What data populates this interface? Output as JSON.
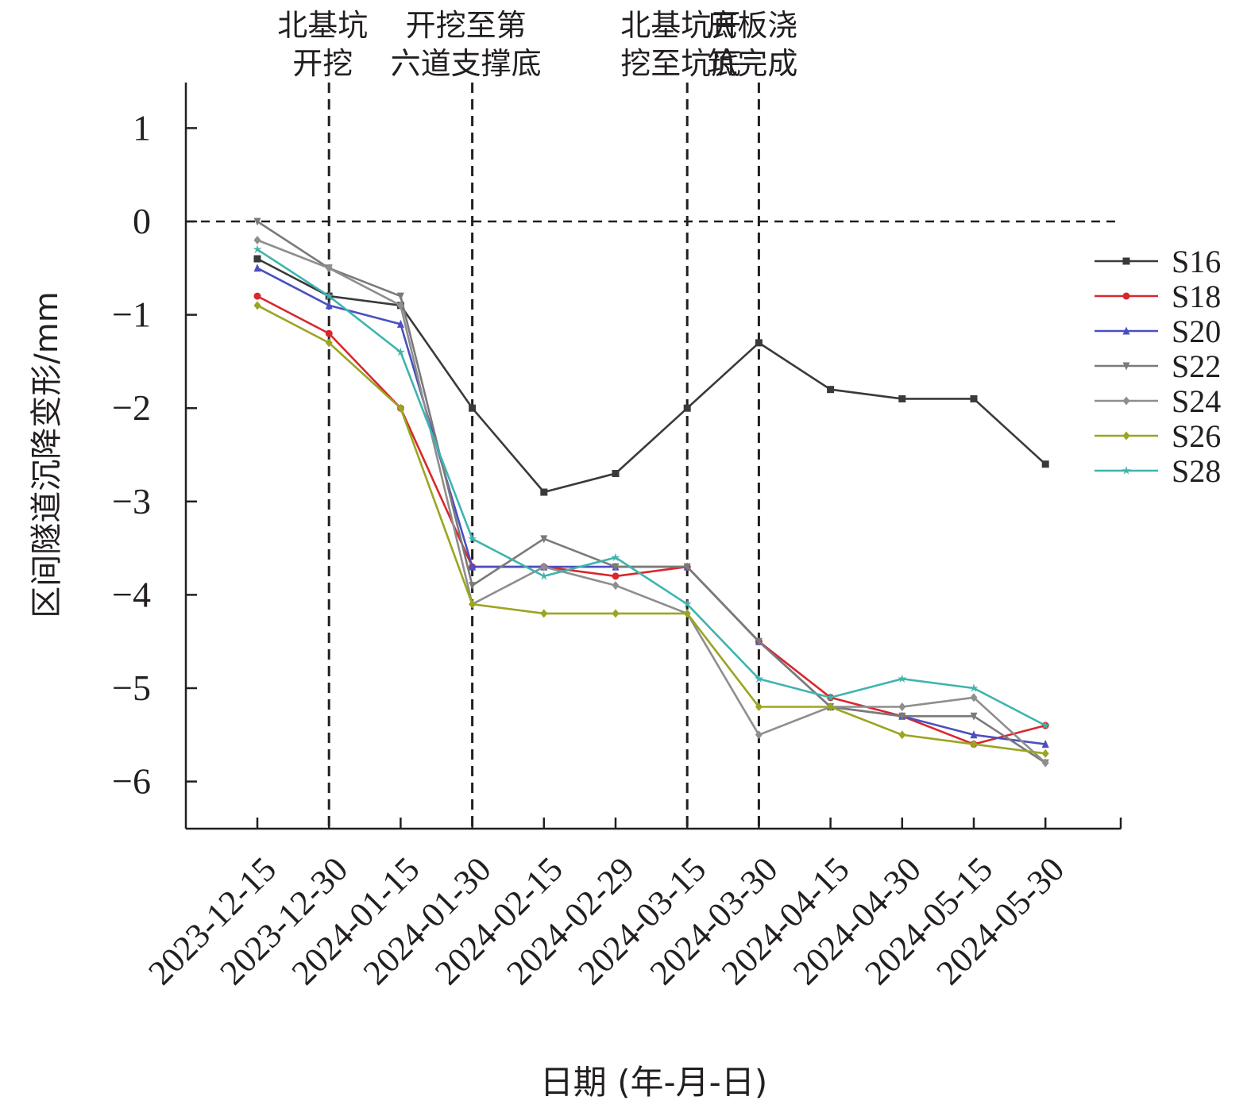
{
  "chart_data": {
    "type": "line",
    "xlabel": "日期 (年-月-日)",
    "ylabel": "区间隧道沉降变形/mm",
    "ylim": [
      -6.5,
      1.5
    ],
    "yticks": [
      1,
      0,
      -1,
      -2,
      -3,
      -4,
      -5,
      -6
    ],
    "ytick_labels": [
      "1",
      "0",
      "−1",
      "−2",
      "−3",
      "−4",
      "−5",
      "−6"
    ],
    "categories": [
      "2023-12-15",
      "2023-12-30",
      "2024-01-15",
      "2024-01-30",
      "2024-02-15",
      "2024-02-29",
      "2024-03-15",
      "2024-03-30",
      "2024-04-15",
      "2024-04-30",
      "2024-05-15",
      "2024-05-30"
    ],
    "reference_line_y": 0,
    "grid": false,
    "legend_position": "right",
    "events": [
      {
        "x": 1.0,
        "lines": [
          "北基坑",
          "开挖"
        ]
      },
      {
        "x": 3.0,
        "lines": [
          "开挖至第",
          "六道支撑底"
        ]
      },
      {
        "x": 6.0,
        "lines": [
          "北基坑开",
          "挖至坑底"
        ]
      },
      {
        "x": 7.0,
        "lines": [
          "底板浇",
          "筑完成"
        ]
      }
    ],
    "series": [
      {
        "name": "S16",
        "color": "#3a3a3a",
        "marker": "square",
        "values": [
          -0.4,
          -0.8,
          -0.9,
          -2.0,
          -2.9,
          -2.7,
          -2.0,
          -1.3,
          -1.8,
          -1.9,
          -1.9,
          -2.6
        ]
      },
      {
        "name": "S18",
        "color": "#d8282e",
        "marker": "circle",
        "values": [
          -0.8,
          -1.2,
          -2.0,
          -3.7,
          -3.7,
          -3.8,
          -3.7,
          -4.5,
          -5.1,
          -5.3,
          -5.6,
          -5.4
        ]
      },
      {
        "name": "S20",
        "color": "#4b4fc0",
        "marker": "triangle-up",
        "values": [
          -0.5,
          -0.9,
          -1.1,
          -3.7,
          -3.7,
          -3.7,
          -3.7,
          -4.5,
          -5.2,
          -5.3,
          -5.5,
          -5.6
        ]
      },
      {
        "name": "S22",
        "color": "#7a7a7a",
        "marker": "triangle-down",
        "values": [
          0.0,
          -0.5,
          -0.8,
          -3.9,
          -3.4,
          -3.7,
          -3.7,
          -4.5,
          -5.2,
          -5.3,
          -5.3,
          -5.8
        ]
      },
      {
        "name": "S24",
        "color": "#8e8e8e",
        "marker": "diamond",
        "values": [
          -0.2,
          -0.5,
          -0.9,
          -4.1,
          -3.7,
          -3.9,
          -4.2,
          -5.5,
          -5.2,
          -5.2,
          -5.1,
          -5.8
        ]
      },
      {
        "name": "S26",
        "color": "#9ba522",
        "marker": "diamond",
        "values": [
          -0.9,
          -1.3,
          -2.0,
          -4.1,
          -4.2,
          -4.2,
          -4.2,
          -5.2,
          -5.2,
          -5.5,
          -5.6,
          -5.7
        ]
      },
      {
        "name": "S28",
        "color": "#3fb4ad",
        "marker": "star",
        "values": [
          -0.3,
          -0.8,
          -1.4,
          -3.4,
          -3.8,
          -3.6,
          -4.1,
          -4.9,
          -5.1,
          -4.9,
          -5.0,
          -5.4
        ]
      }
    ]
  }
}
